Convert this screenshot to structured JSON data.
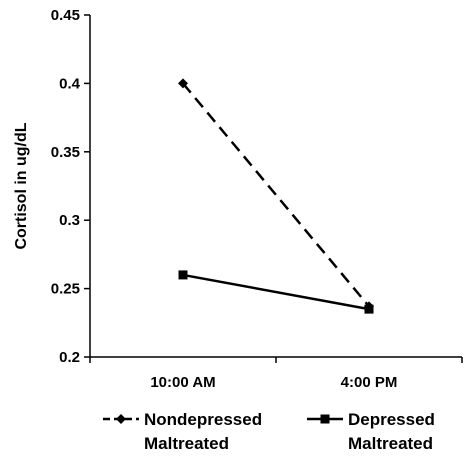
{
  "chart_data": {
    "type": "line",
    "title": "",
    "xlabel": "",
    "ylabel": "Cortisol in ug/dL",
    "categories": [
      "10:00 AM",
      "4:00 PM"
    ],
    "ylim": [
      0.2,
      0.45
    ],
    "yticks": [
      0.2,
      0.25,
      0.3,
      0.35,
      0.4,
      0.45
    ],
    "ytick_labels": [
      "0.2",
      "0.25",
      "0.3",
      "0.35",
      "0.4",
      "0.45"
    ],
    "grid": false,
    "legend_position": "bottom",
    "series": [
      {
        "name_lines": [
          "Nondepressed",
          "Maltreated"
        ],
        "values": [
          0.4,
          0.237
        ],
        "line_style": "dashed",
        "marker": "diamond",
        "color": "#000000"
      },
      {
        "name_lines": [
          "Depressed",
          "Maltreated"
        ],
        "values": [
          0.26,
          0.235
        ],
        "line_style": "solid",
        "marker": "square",
        "color": "#000000"
      }
    ]
  }
}
